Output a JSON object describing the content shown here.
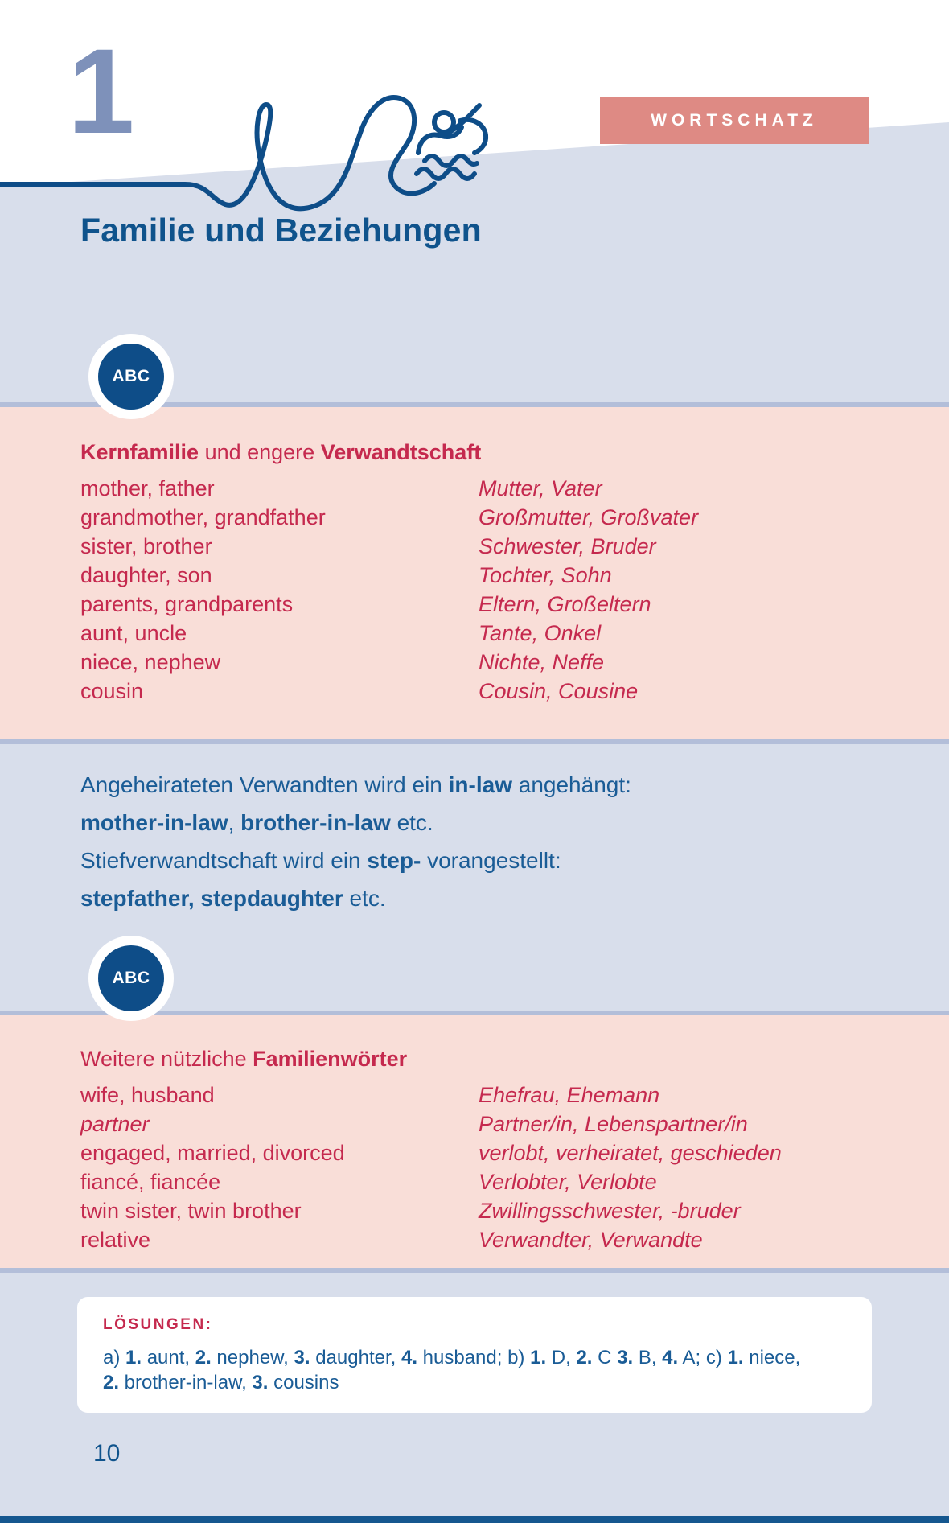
{
  "page": {
    "chapter_number": "1",
    "banner_label": "WORTSCHATZ",
    "title": "Familie und Beziehungen",
    "page_number": "10"
  },
  "icons": {
    "abc_label": "ABC",
    "swimmer": "swimmer-icon",
    "squiggle": "decorative-wavy-line"
  },
  "colors": {
    "accent_blue_dark": "#0e4d88",
    "accent_blue_text": "#1a5c96",
    "title_blue": "#0f538c",
    "crimson": "#c5294e",
    "lavender_bg": "#d8deeb",
    "pink_bg": "#f9ded8",
    "divider": "#b3bed9",
    "banner_salmon": "#de8a84",
    "chapter_number_blue": "#7e91ba"
  },
  "section1": {
    "heading_segments": [
      {
        "t": "Kernfamilie",
        "b": true
      },
      {
        "t": " und engere ",
        "b": false
      },
      {
        "t": "Verwandtschaft",
        "b": true
      }
    ],
    "rows": [
      {
        "en": "mother, father",
        "de": "Mutter, Vater"
      },
      {
        "en": "grandmother, grandfather",
        "de": "Großmutter, Großvater"
      },
      {
        "en": "sister, brother",
        "de": "Schwester, Bruder"
      },
      {
        "en": "daughter, son",
        "de": "Tochter, Sohn"
      },
      {
        "en": "parents, grandparents",
        "de": "Eltern, Großeltern"
      },
      {
        "en": "aunt, uncle",
        "de": "Tante, Onkel"
      },
      {
        "en": "niece, nephew",
        "de": "Nichte, Neffe"
      },
      {
        "en": "cousin",
        "de": "Cousin, Cousine"
      }
    ]
  },
  "note": {
    "lines": [
      [
        {
          "t": "Angeheirateten Verwandten wird ein ",
          "b": false
        },
        {
          "t": "in-law",
          "b": true
        },
        {
          "t": " angehängt:",
          "b": false
        }
      ],
      [
        {
          "t": "mother-in-law",
          "b": true
        },
        {
          "t": ", ",
          "b": false
        },
        {
          "t": "brother-in-law",
          "b": true
        },
        {
          "t": " etc.",
          "b": false
        }
      ],
      [
        {
          "t": "Stiefverwandtschaft wird ein ",
          "b": false
        },
        {
          "t": "step-",
          "b": true
        },
        {
          "t": " vorangestellt:",
          "b": false
        }
      ],
      [
        {
          "t": "stepfather, stepdaughter",
          "b": true
        },
        {
          "t": " etc.",
          "b": false
        }
      ]
    ]
  },
  "section2": {
    "heading_segments": [
      {
        "t": "Weitere nützliche ",
        "b": false
      },
      {
        "t": "Familienwörter",
        "b": true
      }
    ],
    "rows": [
      {
        "en": "wife, husband",
        "de": "Ehefrau, Ehemann"
      },
      {
        "en": "partner",
        "de": "Partner/in, Lebenspartner/in",
        "en_italic": true
      },
      {
        "en": "engaged, married, divorced",
        "de": "verlobt, verheiratet, geschieden"
      },
      {
        "en": "fiancé, fiancée",
        "de": "Verlobter, Verlobte"
      },
      {
        "en": "twin sister, twin brother",
        "de": "Zwillingsschwester, -bruder"
      },
      {
        "en": "relative",
        "de": "Verwandter, Verwandte"
      }
    ]
  },
  "solutions": {
    "heading": "LÖSUNGEN:",
    "lines": [
      [
        {
          "t": "a) ",
          "b": false
        },
        {
          "t": "1.",
          "b": true
        },
        {
          "t": " aunt, ",
          "b": false
        },
        {
          "t": "2.",
          "b": true
        },
        {
          "t": " nephew, ",
          "b": false
        },
        {
          "t": "3.",
          "b": true
        },
        {
          "t": " daughter, ",
          "b": false
        },
        {
          "t": "4.",
          "b": true
        },
        {
          "t": " husband; b) ",
          "b": false
        },
        {
          "t": "1.",
          "b": true
        },
        {
          "t": " D, ",
          "b": false
        },
        {
          "t": "2.",
          "b": true
        },
        {
          "t": " C ",
          "b": false
        },
        {
          "t": "3.",
          "b": true
        },
        {
          "t": " B, ",
          "b": false
        },
        {
          "t": "4.",
          "b": true
        },
        {
          "t": " A; c) ",
          "b": false
        },
        {
          "t": "1.",
          "b": true
        },
        {
          "t": " niece,",
          "b": false
        }
      ],
      [
        {
          "t": "2.",
          "b": true
        },
        {
          "t": " brother-in-law, ",
          "b": false
        },
        {
          "t": "3.",
          "b": true
        },
        {
          "t": " cousins",
          "b": false
        }
      ]
    ]
  }
}
